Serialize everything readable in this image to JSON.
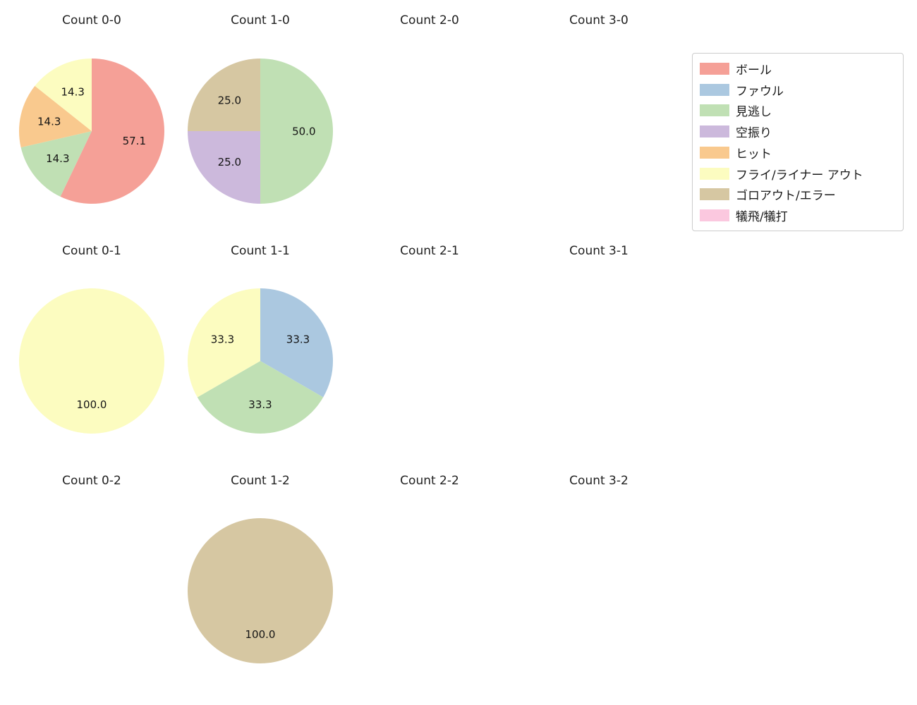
{
  "chart_data": {
    "type": "pie",
    "grid": {
      "rows": 3,
      "cols": 4
    },
    "start_angle_deg": 90,
    "direction": "clockwise",
    "pct_distance": 0.6,
    "background": "#ffffff",
    "legend": {
      "position": "upper right",
      "entries": [
        {
          "label": "ボール",
          "color": "#f5a097"
        },
        {
          "label": "ファウル",
          "color": "#abc8e0"
        },
        {
          "label": "見逃し",
          "color": "#c0e0b4"
        },
        {
          "label": "空振り",
          "color": "#ccb9dc"
        },
        {
          "label": "ヒット",
          "color": "#f9c98e"
        },
        {
          "label": "フライ/ライナー アウト",
          "color": "#fcfcc0"
        },
        {
          "label": "ゴロアウト/エラー",
          "color": "#d6c7a2"
        },
        {
          "label": "犠飛/犠打",
          "color": "#fbc8df"
        }
      ]
    },
    "charts": [
      {
        "title": "Count 0-0",
        "slices": [
          {
            "label": "ボール",
            "value": 57.1,
            "pct_label": "57.1"
          },
          {
            "label": "見逃し",
            "value": 14.3,
            "pct_label": "14.3"
          },
          {
            "label": "ヒット",
            "value": 14.3,
            "pct_label": "14.3"
          },
          {
            "label": "フライ/ライナー アウト",
            "value": 14.3,
            "pct_label": "14.3"
          }
        ]
      },
      {
        "title": "Count 1-0",
        "slices": [
          {
            "label": "見逃し",
            "value": 50.0,
            "pct_label": "50.0"
          },
          {
            "label": "空振り",
            "value": 25.0,
            "pct_label": "25.0"
          },
          {
            "label": "ゴロアウト/エラー",
            "value": 25.0,
            "pct_label": "25.0"
          }
        ]
      },
      {
        "title": "Count 2-0",
        "slices": []
      },
      {
        "title": "Count 3-0",
        "slices": []
      },
      {
        "title": "Count 0-1",
        "slices": [
          {
            "label": "フライ/ライナー アウト",
            "value": 100.0,
            "pct_label": "100.0"
          }
        ]
      },
      {
        "title": "Count 1-1",
        "slices": [
          {
            "label": "ファウル",
            "value": 33.3,
            "pct_label": "33.3"
          },
          {
            "label": "見逃し",
            "value": 33.3,
            "pct_label": "33.3"
          },
          {
            "label": "フライ/ライナー アウト",
            "value": 33.3,
            "pct_label": "33.3"
          }
        ]
      },
      {
        "title": "Count 2-1",
        "slices": []
      },
      {
        "title": "Count 3-1",
        "slices": []
      },
      {
        "title": "Count 0-2",
        "slices": []
      },
      {
        "title": "Count 1-2",
        "slices": [
          {
            "label": "ゴロアウト/エラー",
            "value": 100.0,
            "pct_label": "100.0"
          }
        ]
      },
      {
        "title": "Count 2-2",
        "slices": []
      },
      {
        "title": "Count 3-2",
        "slices": []
      }
    ]
  }
}
